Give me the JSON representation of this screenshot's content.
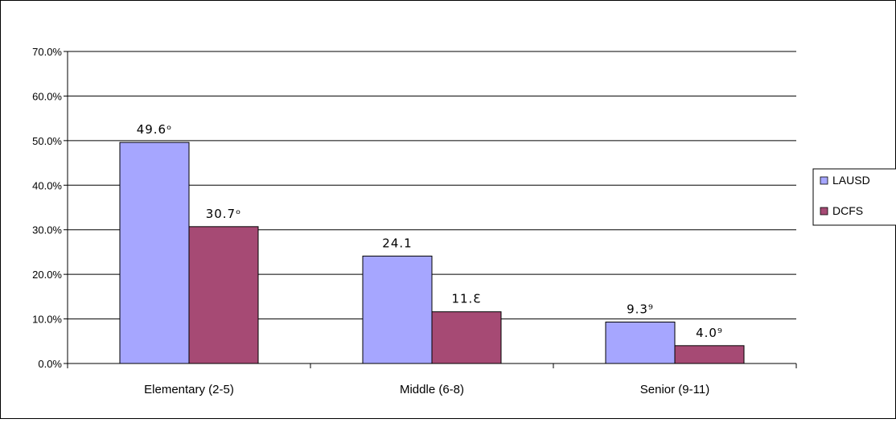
{
  "chart_data": {
    "type": "bar",
    "title": "",
    "xlabel": "",
    "ylabel": "",
    "ylim": [
      0,
      70
    ],
    "yticks": [
      "0.0%",
      "10.0%",
      "20.0%",
      "30.0%",
      "40.0%",
      "50.0%",
      "60.0%",
      "70.0%"
    ],
    "ytick_values": [
      0,
      10,
      20,
      30,
      40,
      50,
      60,
      70
    ],
    "categories": [
      "Elementary (2-5)",
      "Middle (6-8)",
      "Senior (9-11)"
    ],
    "grid": true,
    "legend_position": "right",
    "series": [
      {
        "name": "LAUSD",
        "color": "#A6A6FF",
        "values": [
          49.6,
          24.1,
          9.3
        ],
        "data_labels": [
          "49.6ᵒ",
          "24.1",
          "9.3⁹"
        ]
      },
      {
        "name": "DCFS",
        "color": "#A64A74",
        "values": [
          30.7,
          11.6,
          4.0
        ],
        "data_labels": [
          "30.7ᵒ",
          "11.Ɛ",
          "4.0⁹"
        ]
      }
    ]
  }
}
